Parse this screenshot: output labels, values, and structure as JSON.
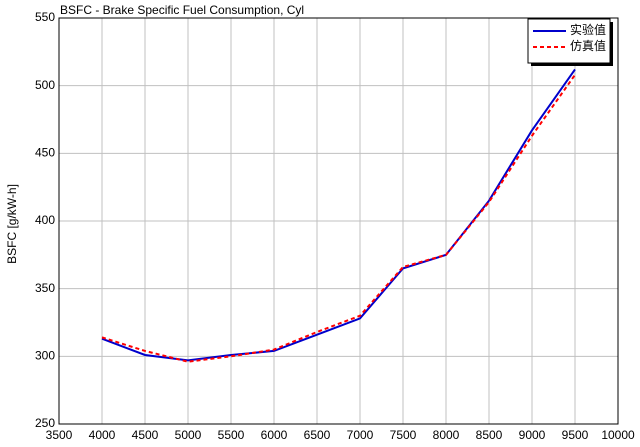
{
  "chart_data": {
    "type": "line",
    "title": "BSFC - Brake Specific Fuel Consumption, Cyl",
    "y_label": "BSFC [g/kW-h]",
    "x": [
      4000,
      4500,
      5000,
      5500,
      6000,
      6500,
      7000,
      7500,
      8000,
      8500,
      9000,
      9500
    ],
    "series": [
      {
        "name": "实验值",
        "color": "#0000cc",
        "line_style": "solid",
        "values": [
          313,
          301,
          297,
          301,
          304,
          316,
          328,
          365,
          375,
          415,
          467,
          512
        ]
      },
      {
        "name": "仿真值",
        "color": "#ff0000",
        "line_style": "dashed",
        "values": [
          314,
          304,
          296,
          300,
          305,
          318,
          330,
          366,
          375,
          414,
          463,
          508
        ]
      }
    ],
    "xlim": [
      3500,
      10000
    ],
    "xticks": [
      3500,
      4000,
      4500,
      5000,
      5500,
      6000,
      6500,
      7000,
      7500,
      8000,
      8500,
      9000,
      9500,
      10000
    ],
    "ylim": [
      250,
      550
    ],
    "yticks": [
      250,
      300,
      350,
      400,
      450,
      500,
      550
    ],
    "grid": true,
    "legend": "top-right"
  }
}
